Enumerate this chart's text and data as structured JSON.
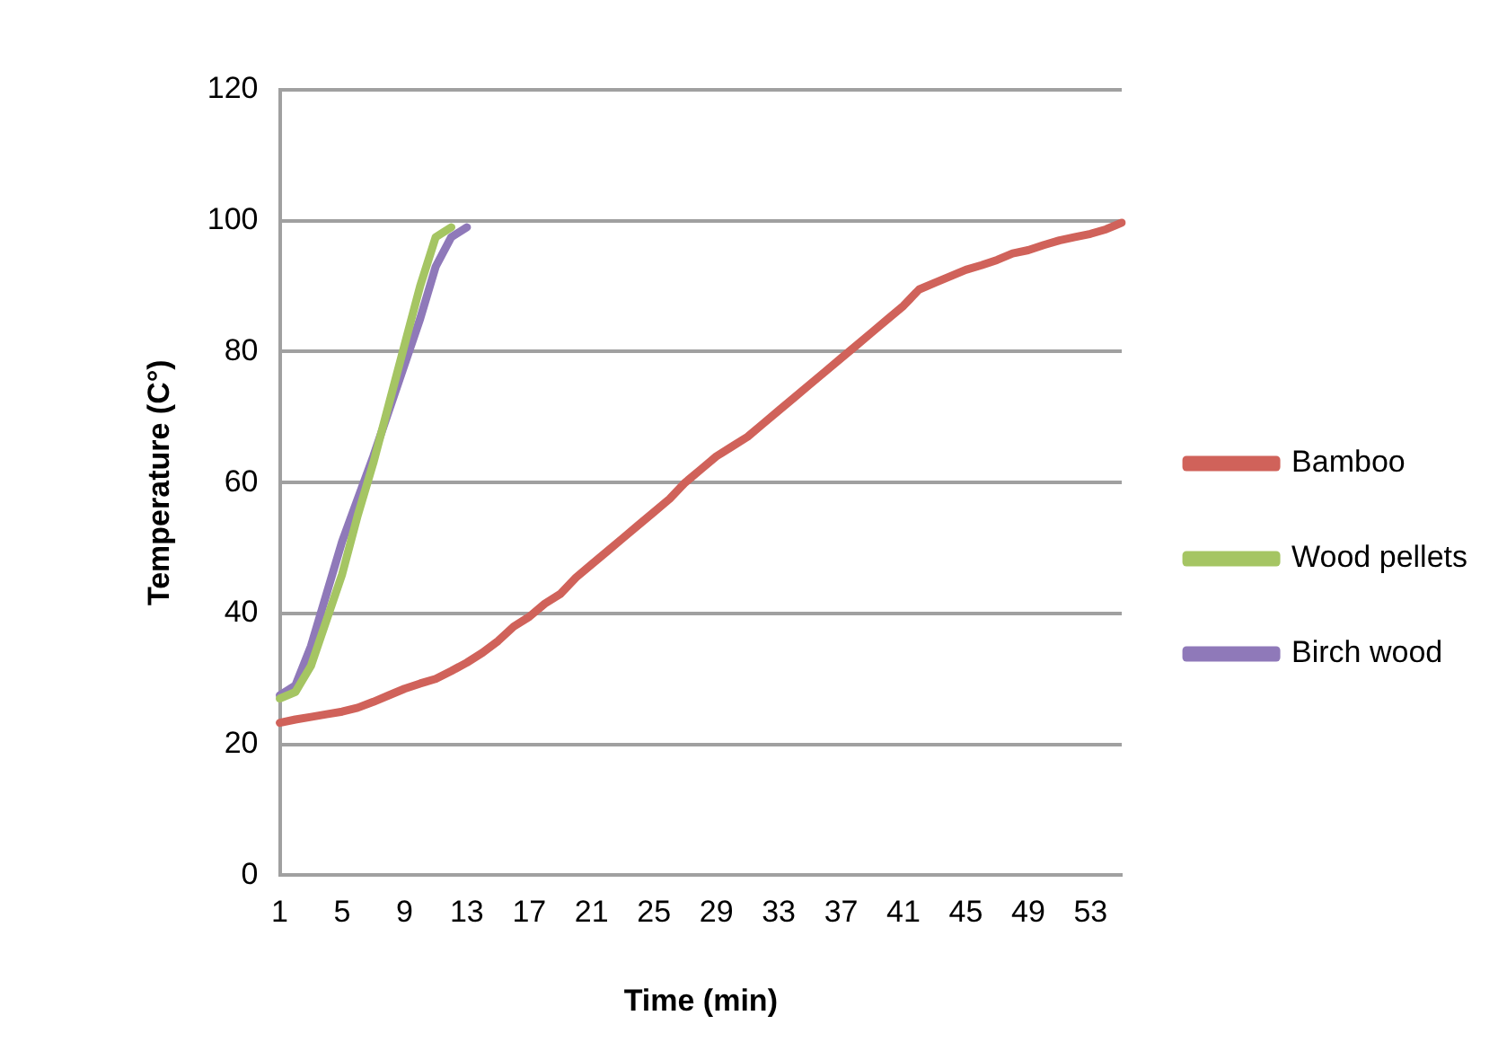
{
  "chart_data": {
    "type": "line",
    "xlabel": "Time (min)",
    "ylabel": "Temperature (C°)",
    "categories": [
      "1",
      null,
      null,
      null,
      "5",
      null,
      null,
      null,
      "9",
      null,
      null,
      null,
      "13",
      null,
      null,
      null,
      "17",
      null,
      null,
      null,
      "21",
      null,
      null,
      null,
      "25",
      null,
      null,
      null,
      "29",
      null,
      null,
      null,
      "33",
      null,
      null,
      null,
      "37",
      null,
      null,
      null,
      "41",
      null,
      null,
      null,
      "45",
      null,
      null,
      null,
      "49",
      null,
      null,
      null,
      "53",
      null,
      null
    ],
    "series": [
      {
        "name": "Bamboo",
        "color": "#d0625a",
        "values": [
          23.3,
          23.8,
          24.2,
          24.6,
          25,
          25.6,
          26.5,
          27.5,
          28.5,
          29.3,
          30,
          31.2,
          32.5,
          34,
          35.8,
          38,
          39.5,
          41.5,
          43,
          45.5,
          47.5,
          49.5,
          51.5,
          53.5,
          55.5,
          57.5,
          60,
          62,
          64,
          65.5,
          67,
          69,
          71,
          73,
          75,
          77,
          79,
          81,
          83,
          85,
          87,
          89.5,
          90.5,
          91.5,
          92.5,
          93.2,
          94,
          95,
          95.5,
          96.3,
          97,
          97.5,
          98,
          98.7,
          99.7
        ]
      },
      {
        "name": "Wood pellets",
        "color": "#a5c563",
        "values": [
          27,
          28,
          32,
          39,
          46,
          55,
          63,
          72,
          81,
          90,
          97.5,
          99,
          null,
          null,
          null,
          null,
          null,
          null,
          null,
          null,
          null,
          null,
          null,
          null,
          null,
          null,
          null,
          null,
          null,
          null,
          null,
          null,
          null,
          null,
          null,
          null,
          null,
          null,
          null,
          null,
          null,
          null,
          null,
          null,
          null,
          null,
          null,
          null,
          null,
          null,
          null,
          null,
          null,
          null,
          null
        ]
      },
      {
        "name": "Birch wood",
        "color": "#8f79b9",
        "values": [
          27.5,
          29,
          35,
          43,
          51,
          57.5,
          64,
          71,
          78,
          85,
          93,
          97.5,
          99,
          null,
          null,
          null,
          null,
          null,
          null,
          null,
          null,
          null,
          null,
          null,
          null,
          null,
          null,
          null,
          null,
          null,
          null,
          null,
          null,
          null,
          null,
          null,
          null,
          null,
          null,
          null,
          null,
          null,
          null,
          null,
          null,
          null,
          null,
          null,
          null,
          null,
          null,
          null,
          null,
          null,
          null
        ]
      }
    ],
    "ylim": [
      0,
      120
    ],
    "yticks": [
      0,
      20,
      40,
      60,
      80,
      100,
      120
    ],
    "grid": "y",
    "legend": "right",
    "marker": "none",
    "line_style": "solid"
  }
}
